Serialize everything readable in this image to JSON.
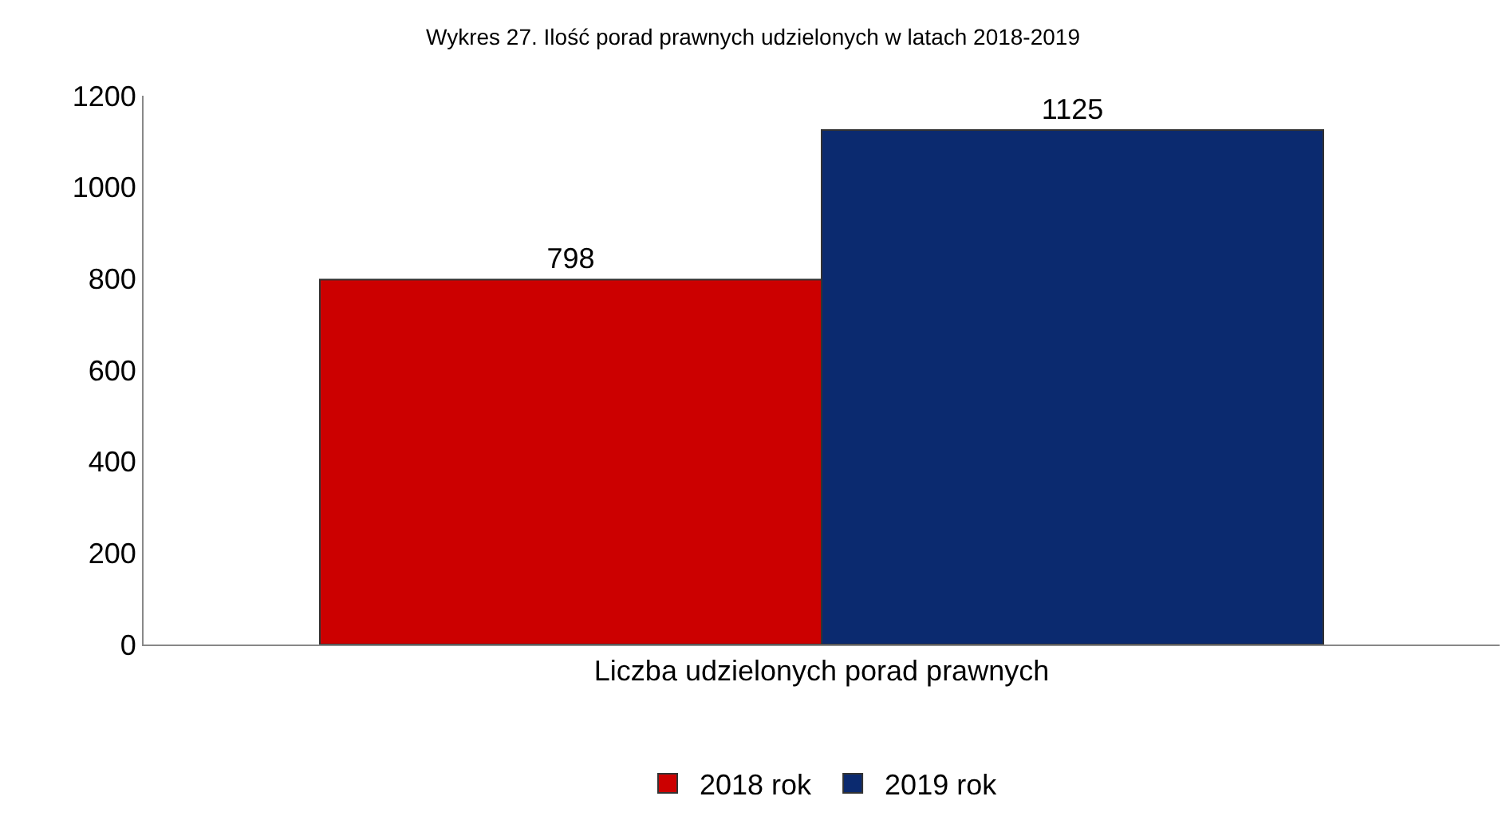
{
  "chart_data": {
    "type": "bar",
    "title": "Wykres 27. Ilość porad prawnych udzielonych w latach 2018-2019",
    "categories": [
      "Liczba udzielonych porad prawnych"
    ],
    "series": [
      {
        "name": "2018 rok",
        "color": "#cc0000",
        "values": [
          798
        ]
      },
      {
        "name": "2019 rok",
        "color": "#0b2a6f",
        "values": [
          1125
        ]
      }
    ],
    "ylim": [
      0,
      1200
    ],
    "yticks": [
      0,
      200,
      400,
      600,
      800,
      1000,
      1200
    ],
    "legend": "bottom",
    "data_labels": true
  }
}
